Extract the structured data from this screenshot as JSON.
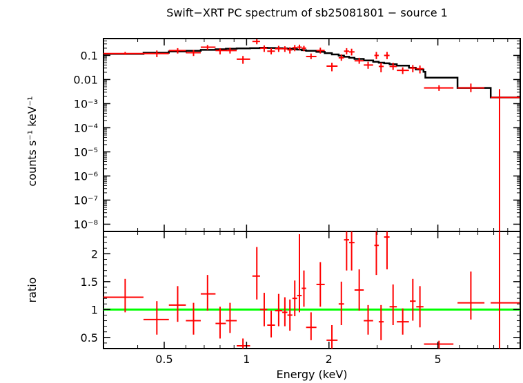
{
  "chart_data": {
    "type": "scatter",
    "title": "Swift−XRT PC spectrum of sb25081801 − source 1",
    "xlabel": "Energy (keV)",
    "x_scale": "log",
    "xlim": [
      0.3,
      10.0
    ],
    "x_ticks": [
      {
        "value": 0.5,
        "label": "0.5"
      },
      {
        "value": 1,
        "label": "1"
      },
      {
        "value": 2,
        "label": "2"
      },
      {
        "value": 5,
        "label": "5"
      }
    ],
    "colors": {
      "data": "#ff0000",
      "model": "#000000",
      "unity": "#00ff00",
      "frame": "#000000"
    },
    "top_panel": {
      "ylabel": "counts s⁻¹ keV⁻¹",
      "y_scale": "log",
      "ylim": [
        5e-09,
        0.5
      ],
      "y_ticks": [
        {
          "value": 0.1,
          "label": "0.1"
        },
        {
          "value": 0.01,
          "label": "0.01"
        },
        {
          "value": 0.001,
          "label": "10⁻³"
        },
        {
          "value": 0.0001,
          "label": "10⁻⁴"
        },
        {
          "value": 1e-05,
          "label": "10⁻⁵"
        },
        {
          "value": 1e-06,
          "label": "10⁻⁶"
        },
        {
          "value": 1e-07,
          "label": "10⁻⁷"
        },
        {
          "value": 1e-08,
          "label": "10⁻⁸"
        }
      ],
      "data": [
        {
          "x": 0.36,
          "xlo": 0.3,
          "xhi": 0.42,
          "y": 0.12,
          "ylo": 0.105,
          "yhi": 0.14
        },
        {
          "x": 0.47,
          "xlo": 0.42,
          "xhi": 0.52,
          "y": 0.12,
          "ylo": 0.085,
          "yhi": 0.16
        },
        {
          "x": 0.56,
          "xlo": 0.52,
          "xhi": 0.6,
          "y": 0.16,
          "ylo": 0.12,
          "yhi": 0.2
        },
        {
          "x": 0.64,
          "xlo": 0.6,
          "xhi": 0.68,
          "y": 0.13,
          "ylo": 0.095,
          "yhi": 0.17
        },
        {
          "x": 0.72,
          "xlo": 0.68,
          "xhi": 0.77,
          "y": 0.22,
          "ylo": 0.17,
          "yhi": 0.27
        },
        {
          "x": 0.8,
          "xlo": 0.77,
          "xhi": 0.84,
          "y": 0.16,
          "ylo": 0.11,
          "yhi": 0.2
        },
        {
          "x": 0.87,
          "xlo": 0.84,
          "xhi": 0.92,
          "y": 0.16,
          "ylo": 0.12,
          "yhi": 0.21
        },
        {
          "x": 0.97,
          "xlo": 0.92,
          "xhi": 1.03,
          "y": 0.07,
          "ylo": 0.045,
          "yhi": 0.095
        },
        {
          "x": 1.09,
          "xlo": 1.05,
          "xhi": 1.12,
          "y": 0.38,
          "ylo": 0.29,
          "yhi": 0.47
        },
        {
          "x": 1.16,
          "xlo": 1.12,
          "xhi": 1.19,
          "y": 0.2,
          "ylo": 0.14,
          "yhi": 0.26
        },
        {
          "x": 1.23,
          "xlo": 1.19,
          "xhi": 1.27,
          "y": 0.15,
          "ylo": 0.11,
          "yhi": 0.2
        },
        {
          "x": 1.31,
          "xlo": 1.27,
          "xhi": 1.35,
          "y": 0.19,
          "ylo": 0.14,
          "yhi": 0.25
        },
        {
          "x": 1.38,
          "xlo": 1.35,
          "xhi": 1.41,
          "y": 0.19,
          "ylo": 0.14,
          "yhi": 0.24
        },
        {
          "x": 1.44,
          "xlo": 1.41,
          "xhi": 1.47,
          "y": 0.17,
          "ylo": 0.12,
          "yhi": 0.22
        },
        {
          "x": 1.5,
          "xlo": 1.47,
          "xhi": 1.53,
          "y": 0.21,
          "ylo": 0.15,
          "yhi": 0.27
        },
        {
          "x": 1.56,
          "xlo": 1.53,
          "xhi": 1.59,
          "y": 0.22,
          "ylo": 0.17,
          "yhi": 0.28
        },
        {
          "x": 1.62,
          "xlo": 1.59,
          "xhi": 1.65,
          "y": 0.2,
          "ylo": 0.15,
          "yhi": 0.25
        },
        {
          "x": 1.72,
          "xlo": 1.65,
          "xhi": 1.8,
          "y": 0.09,
          "ylo": 0.07,
          "yhi": 0.12
        },
        {
          "x": 1.86,
          "xlo": 1.8,
          "xhi": 1.93,
          "y": 0.16,
          "ylo": 0.12,
          "yhi": 0.21
        },
        {
          "x": 2.05,
          "xlo": 1.96,
          "xhi": 2.15,
          "y": 0.036,
          "ylo": 0.022,
          "yhi": 0.05
        },
        {
          "x": 2.22,
          "xlo": 2.17,
          "xhi": 2.27,
          "y": 0.08,
          "ylo": 0.06,
          "yhi": 0.11
        },
        {
          "x": 2.32,
          "xlo": 2.27,
          "xhi": 2.37,
          "y": 0.15,
          "ylo": 0.11,
          "yhi": 0.2
        },
        {
          "x": 2.42,
          "xlo": 2.37,
          "xhi": 2.48,
          "y": 0.14,
          "ylo": 0.1,
          "yhi": 0.19
        },
        {
          "x": 2.58,
          "xlo": 2.48,
          "xhi": 2.68,
          "y": 0.06,
          "ylo": 0.045,
          "yhi": 0.08
        },
        {
          "x": 2.78,
          "xlo": 2.68,
          "xhi": 2.9,
          "y": 0.04,
          "ylo": 0.028,
          "yhi": 0.055
        },
        {
          "x": 2.98,
          "xlo": 2.93,
          "xhi": 3.04,
          "y": 0.1,
          "ylo": 0.07,
          "yhi": 0.14
        },
        {
          "x": 3.1,
          "xlo": 3.04,
          "xhi": 3.17,
          "y": 0.035,
          "ylo": 0.02,
          "yhi": 0.05
        },
        {
          "x": 3.26,
          "xlo": 3.18,
          "xhi": 3.33,
          "y": 0.1,
          "ylo": 0.07,
          "yhi": 0.14
        },
        {
          "x": 3.43,
          "xlo": 3.33,
          "xhi": 3.54,
          "y": 0.035,
          "ylo": 0.025,
          "yhi": 0.05
        },
        {
          "x": 3.72,
          "xlo": 3.54,
          "xhi": 3.92,
          "y": 0.024,
          "ylo": 0.017,
          "yhi": 0.032
        },
        {
          "x": 4.05,
          "xlo": 3.95,
          "xhi": 4.15,
          "y": 0.03,
          "ylo": 0.02,
          "yhi": 0.04
        },
        {
          "x": 4.3,
          "xlo": 4.17,
          "xhi": 4.43,
          "y": 0.028,
          "ylo": 0.018,
          "yhi": 0.038
        },
        {
          "x": 5.05,
          "xlo": 4.45,
          "xhi": 5.7,
          "y": 0.0045,
          "ylo": 0.0034,
          "yhi": 0.0058
        },
        {
          "x": 6.6,
          "xlo": 5.9,
          "xhi": 7.4,
          "y": 0.0045,
          "ylo": 0.003,
          "yhi": 0.0068
        },
        {
          "x": 8.4,
          "xlo": 7.8,
          "xhi": 9.95,
          "y": 0.0018,
          "ylo": 5e-09,
          "yhi": 0.004
        }
      ],
      "model": [
        [
          0.3,
          0.115
        ],
        [
          0.42,
          0.13
        ],
        [
          0.52,
          0.145
        ],
        [
          0.6,
          0.155
        ],
        [
          0.68,
          0.17
        ],
        [
          0.77,
          0.18
        ],
        [
          0.84,
          0.19
        ],
        [
          0.92,
          0.195
        ],
        [
          1.03,
          0.2
        ],
        [
          1.12,
          0.21
        ],
        [
          1.19,
          0.205
        ],
        [
          1.27,
          0.2
        ],
        [
          1.35,
          0.195
        ],
        [
          1.41,
          0.19
        ],
        [
          1.47,
          0.182
        ],
        [
          1.53,
          0.175
        ],
        [
          1.59,
          0.165
        ],
        [
          1.65,
          0.155
        ],
        [
          1.8,
          0.14
        ],
        [
          1.93,
          0.125
        ],
        [
          2.05,
          0.11
        ],
        [
          2.17,
          0.098
        ],
        [
          2.27,
          0.088
        ],
        [
          2.37,
          0.08
        ],
        [
          2.48,
          0.072
        ],
        [
          2.68,
          0.062
        ],
        [
          2.9,
          0.055
        ],
        [
          3.04,
          0.05
        ],
        [
          3.18,
          0.047
        ],
        [
          3.33,
          0.043
        ],
        [
          3.54,
          0.038
        ],
        [
          3.92,
          0.031
        ],
        [
          4.15,
          0.026
        ],
        [
          4.43,
          0.021
        ],
        [
          4.5,
          0.012
        ],
        [
          5.9,
          0.0045
        ],
        [
          7.8,
          0.0018
        ],
        [
          10.0,
          0.0018
        ]
      ]
    },
    "bottom_panel": {
      "ylabel": "ratio",
      "y_scale": "linear",
      "ylim": [
        0.3,
        2.4
      ],
      "y_ticks": [
        {
          "value": 0.5,
          "label": "0.5"
        },
        {
          "value": 1,
          "label": "1"
        },
        {
          "value": 1.5,
          "label": "1.5"
        },
        {
          "value": 2,
          "label": "2"
        }
      ],
      "unity_line": 1,
      "data": [
        {
          "x": 0.36,
          "xlo": 0.3,
          "xhi": 0.42,
          "y": 1.22,
          "ylo": 0.95,
          "yhi": 1.55
        },
        {
          "x": 0.47,
          "xlo": 0.42,
          "xhi": 0.52,
          "y": 0.82,
          "ylo": 0.55,
          "yhi": 1.15
        },
        {
          "x": 0.56,
          "xlo": 0.52,
          "xhi": 0.6,
          "y": 1.08,
          "ylo": 0.78,
          "yhi": 1.42
        },
        {
          "x": 0.64,
          "xlo": 0.6,
          "xhi": 0.68,
          "y": 0.8,
          "ylo": 0.55,
          "yhi": 1.12
        },
        {
          "x": 0.72,
          "xlo": 0.68,
          "xhi": 0.77,
          "y": 1.28,
          "ylo": 0.98,
          "yhi": 1.62
        },
        {
          "x": 0.8,
          "xlo": 0.77,
          "xhi": 0.84,
          "y": 0.75,
          "ylo": 0.48,
          "yhi": 1.05
        },
        {
          "x": 0.87,
          "xlo": 0.84,
          "xhi": 0.92,
          "y": 0.8,
          "ylo": 0.58,
          "yhi": 1.12
        },
        {
          "x": 0.97,
          "xlo": 0.92,
          "xhi": 1.03,
          "y": 0.35,
          "ylo": 0.3,
          "yhi": 0.48
        },
        {
          "x": 1.09,
          "xlo": 1.05,
          "xhi": 1.12,
          "y": 1.6,
          "ylo": 1.18,
          "yhi": 2.12
        },
        {
          "x": 1.16,
          "xlo": 1.12,
          "xhi": 1.19,
          "y": 1.0,
          "ylo": 0.7,
          "yhi": 1.3
        },
        {
          "x": 1.23,
          "xlo": 1.19,
          "xhi": 1.27,
          "y": 0.72,
          "ylo": 0.5,
          "yhi": 0.98
        },
        {
          "x": 1.31,
          "xlo": 1.27,
          "xhi": 1.35,
          "y": 0.98,
          "ylo": 0.7,
          "yhi": 1.28
        },
        {
          "x": 1.38,
          "xlo": 1.35,
          "xhi": 1.41,
          "y": 0.95,
          "ylo": 0.7,
          "yhi": 1.22
        },
        {
          "x": 1.44,
          "xlo": 1.41,
          "xhi": 1.47,
          "y": 0.9,
          "ylo": 0.62,
          "yhi": 1.18
        },
        {
          "x": 1.5,
          "xlo": 1.47,
          "xhi": 1.53,
          "y": 1.2,
          "ylo": 0.88,
          "yhi": 1.52
        },
        {
          "x": 1.56,
          "xlo": 1.53,
          "xhi": 1.59,
          "y": 1.25,
          "ylo": 0.95,
          "yhi": 2.35
        },
        {
          "x": 1.62,
          "xlo": 1.59,
          "xhi": 1.65,
          "y": 1.38,
          "ylo": 1.05,
          "yhi": 1.7
        },
        {
          "x": 1.72,
          "xlo": 1.65,
          "xhi": 1.8,
          "y": 0.68,
          "ylo": 0.45,
          "yhi": 0.95
        },
        {
          "x": 1.86,
          "xlo": 1.8,
          "xhi": 1.93,
          "y": 1.45,
          "ylo": 1.05,
          "yhi": 1.85
        },
        {
          "x": 2.05,
          "xlo": 1.96,
          "xhi": 2.15,
          "y": 0.45,
          "ylo": 0.3,
          "yhi": 0.72
        },
        {
          "x": 2.22,
          "xlo": 2.17,
          "xhi": 2.27,
          "y": 1.1,
          "ylo": 0.72,
          "yhi": 1.5
        },
        {
          "x": 2.32,
          "xlo": 2.27,
          "xhi": 2.37,
          "y": 2.25,
          "ylo": 1.7,
          "yhi": 2.4
        },
        {
          "x": 2.42,
          "xlo": 2.37,
          "xhi": 2.48,
          "y": 2.2,
          "ylo": 1.7,
          "yhi": 2.4
        },
        {
          "x": 2.58,
          "xlo": 2.48,
          "xhi": 2.68,
          "y": 1.35,
          "ylo": 0.98,
          "yhi": 1.72
        },
        {
          "x": 2.78,
          "xlo": 2.68,
          "xhi": 2.9,
          "y": 0.8,
          "ylo": 0.55,
          "yhi": 1.08
        },
        {
          "x": 2.98,
          "xlo": 2.93,
          "xhi": 3.04,
          "y": 2.15,
          "ylo": 1.62,
          "yhi": 2.4
        },
        {
          "x": 3.1,
          "xlo": 3.04,
          "xhi": 3.17,
          "y": 0.78,
          "ylo": 0.45,
          "yhi": 1.08
        },
        {
          "x": 3.26,
          "xlo": 3.18,
          "xhi": 3.33,
          "y": 2.3,
          "ylo": 1.72,
          "yhi": 2.4
        },
        {
          "x": 3.43,
          "xlo": 3.33,
          "xhi": 3.54,
          "y": 1.05,
          "ylo": 0.72,
          "yhi": 1.45
        },
        {
          "x": 3.72,
          "xlo": 3.54,
          "xhi": 3.92,
          "y": 0.78,
          "ylo": 0.55,
          "yhi": 1.02
        },
        {
          "x": 4.05,
          "xlo": 3.95,
          "xhi": 4.15,
          "y": 1.15,
          "ylo": 0.8,
          "yhi": 1.55
        },
        {
          "x": 4.3,
          "xlo": 4.17,
          "xhi": 4.43,
          "y": 1.05,
          "ylo": 0.68,
          "yhi": 1.42
        },
        {
          "x": 5.05,
          "xlo": 4.45,
          "xhi": 5.7,
          "y": 0.38,
          "ylo": 0.3,
          "yhi": 0.44
        },
        {
          "x": 6.6,
          "xlo": 5.9,
          "xhi": 7.4,
          "y": 1.12,
          "ylo": 0.82,
          "yhi": 1.68
        },
        {
          "x": 8.4,
          "xlo": 7.8,
          "xhi": 9.95,
          "y": 1.12,
          "ylo": 0.3,
          "yhi": 2.4
        }
      ]
    }
  }
}
